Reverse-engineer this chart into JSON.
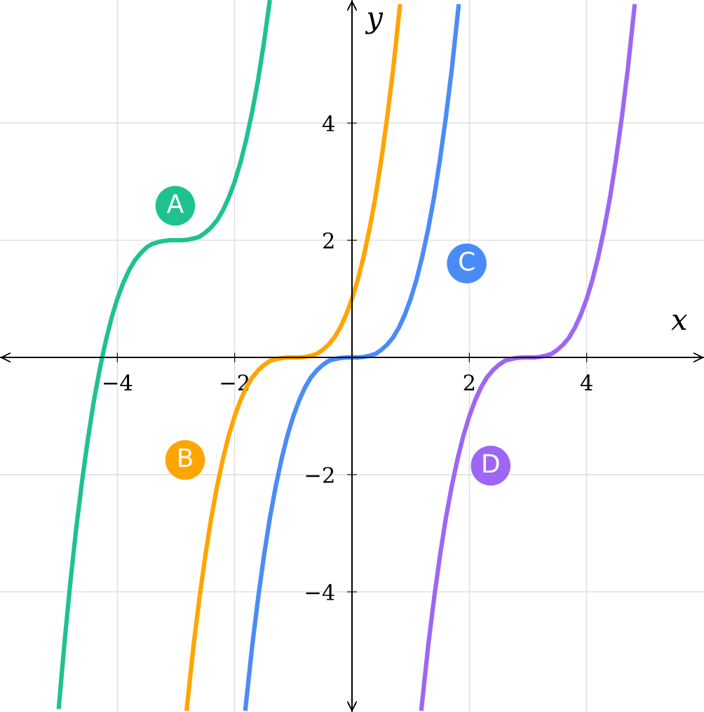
{
  "chart_data": {
    "type": "line",
    "xlabel": "x",
    "ylabel": "y",
    "xlim": [
      -6,
      6
    ],
    "ylim": [
      -6.05,
      6.1
    ],
    "xticks": [
      {
        "value": -4,
        "label": "−4"
      },
      {
        "value": -2,
        "label": "−2"
      },
      {
        "value": 2,
        "label": "2"
      },
      {
        "value": 4,
        "label": "4"
      }
    ],
    "yticks": [
      {
        "value": -4,
        "label": "−4"
      },
      {
        "value": -2,
        "label": "−2"
      },
      {
        "value": 2,
        "label": "2"
      },
      {
        "value": 4,
        "label": "4"
      }
    ],
    "grid": true,
    "legend": false,
    "marker": "none",
    "line_style": "solid",
    "series": [
      {
        "name": "A",
        "color": "#1fc28f",
        "x": [
          -5,
          -4.9,
          -4.8,
          -4.7,
          -4.6,
          -4.5,
          -4.4,
          -4.3,
          -4.2,
          -4.1,
          -4,
          -3.9,
          -3.8,
          -3.7,
          -3.6,
          -3.5,
          -3.4,
          -3.3,
          -3.2,
          -3.1,
          -3,
          -2.9,
          -2.8,
          -2.7,
          -2.6,
          -2.5,
          -2.4,
          -2.3,
          -2.2,
          -2.1,
          -2,
          -1.9,
          -1.8,
          -1.7,
          -1.6,
          -1.5,
          -1.4
        ],
        "values": [
          -6,
          -4.86,
          -3.83,
          -2.91,
          -2.1,
          -1.38,
          -0.74,
          -0.2,
          0.27,
          0.67,
          1,
          1.27,
          1.49,
          1.66,
          1.78,
          1.88,
          1.94,
          1.97,
          1.99,
          2,
          2,
          2,
          2.01,
          2.03,
          2.06,
          2.13,
          2.22,
          2.34,
          2.51,
          2.73,
          3,
          3.33,
          3.73,
          4.2,
          4.74,
          5.38,
          6.1
        ]
      },
      {
        "name": "B",
        "color": "#ffa500",
        "x": [
          -2.82,
          -2.7,
          -2.6,
          -2.5,
          -2.4,
          -2.3,
          -2.2,
          -2.1,
          -2,
          -1.9,
          -1.8,
          -1.7,
          -1.6,
          -1.5,
          -1.4,
          -1.3,
          -1.2,
          -1.1,
          -1,
          -0.9,
          -0.8,
          -0.7,
          -0.6,
          -0.5,
          -0.4,
          -0.3,
          -0.2,
          -0.1,
          0,
          0.1,
          0.2,
          0.3,
          0.4,
          0.5,
          0.6,
          0.7,
          0.82
        ],
        "values": [
          -6.03,
          -4.91,
          -4.1,
          -3.38,
          -2.74,
          -2.2,
          -1.73,
          -1.33,
          -1,
          -0.73,
          -0.51,
          -0.34,
          -0.22,
          -0.13,
          -0.06,
          -0.03,
          -0.01,
          0,
          0,
          0,
          0.01,
          0.03,
          0.06,
          0.13,
          0.22,
          0.34,
          0.51,
          0.73,
          1,
          1.33,
          1.73,
          2.2,
          2.74,
          3.38,
          4.1,
          4.91,
          6.03
        ]
      },
      {
        "name": "C",
        "color": "#4a8cf7",
        "x": [
          -1.82,
          -1.7,
          -1.6,
          -1.5,
          -1.4,
          -1.3,
          -1.2,
          -1.1,
          -1,
          -0.9,
          -0.8,
          -0.7,
          -0.6,
          -0.5,
          -0.4,
          -0.3,
          -0.2,
          -0.1,
          0,
          0.1,
          0.2,
          0.3,
          0.4,
          0.5,
          0.6,
          0.7,
          0.8,
          0.9,
          1,
          1.1,
          1.2,
          1.3,
          1.4,
          1.5,
          1.6,
          1.7,
          1.82
        ],
        "values": [
          -6.03,
          -4.91,
          -4.1,
          -3.38,
          -2.74,
          -2.2,
          -1.73,
          -1.33,
          -1,
          -0.73,
          -0.51,
          -0.34,
          -0.22,
          -0.13,
          -0.06,
          -0.03,
          -0.01,
          0,
          0,
          0,
          0.01,
          0.03,
          0.06,
          0.13,
          0.22,
          0.34,
          0.51,
          0.73,
          1,
          1.33,
          1.73,
          2.2,
          2.74,
          3.38,
          4.1,
          4.91,
          6.03
        ]
      },
      {
        "name": "D",
        "color": "#9e66f5",
        "x": [
          1.18,
          1.3,
          1.4,
          1.5,
          1.6,
          1.7,
          1.8,
          1.9,
          2,
          2.1,
          2.2,
          2.3,
          2.4,
          2.5,
          2.6,
          2.7,
          2.8,
          2.9,
          3,
          3.1,
          3.2,
          3.3,
          3.4,
          3.5,
          3.6,
          3.7,
          3.8,
          3.9,
          4,
          4.1,
          4.2,
          4.3,
          4.4,
          4.5,
          4.6,
          4.7,
          4.82
        ],
        "values": [
          -6.03,
          -4.91,
          -4.1,
          -3.38,
          -2.74,
          -2.2,
          -1.73,
          -1.33,
          -1,
          -0.73,
          -0.51,
          -0.34,
          -0.22,
          -0.13,
          -0.06,
          -0.03,
          -0.01,
          0,
          0,
          0,
          0.01,
          0.03,
          0.06,
          0.13,
          0.22,
          0.34,
          0.51,
          0.73,
          1,
          1.33,
          1.73,
          2.2,
          2.74,
          3.38,
          4.1,
          4.91,
          6.03
        ]
      }
    ]
  }
}
